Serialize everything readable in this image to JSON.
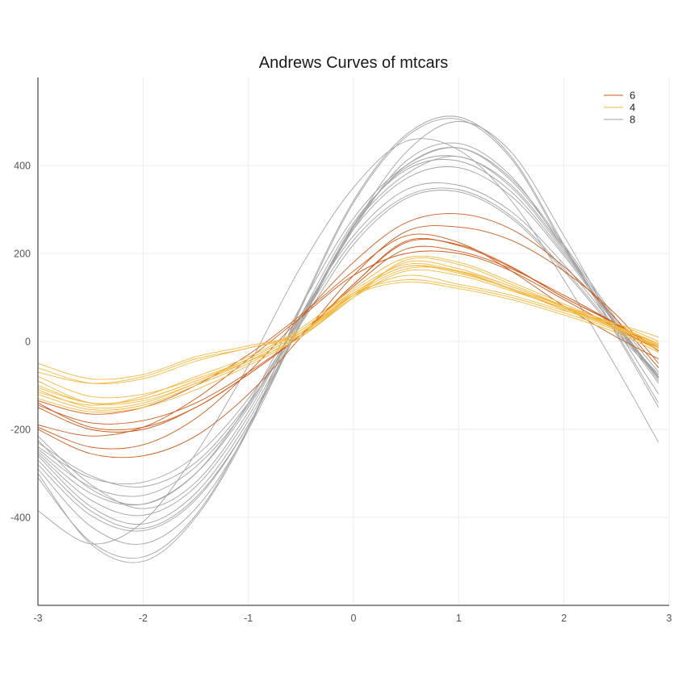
{
  "chart_data": {
    "type": "line",
    "title": "Andrews Curves of mtcars",
    "xlabel": "",
    "ylabel": "",
    "xlim": [
      -3,
      3
    ],
    "ylim": [
      -600,
      600
    ],
    "x_ticks": [
      -3,
      -2,
      -1,
      0,
      1,
      2,
      3
    ],
    "y_ticks": [
      -400,
      -200,
      0,
      200,
      400
    ],
    "grid": true,
    "legend_position": "top-right",
    "legend": [
      {
        "label": "6",
        "color": "#cc5a1a"
      },
      {
        "label": "4",
        "color": "#f2b840"
      },
      {
        "label": "8",
        "color": "#a3a3a3"
      }
    ],
    "series": [
      {
        "group": "6",
        "x": [
          -3,
          -2.5,
          -2,
          -1.5,
          -1,
          -0.5,
          0,
          0.5,
          1,
          1.5,
          2,
          2.5,
          2.9
        ],
        "y": [
          -140,
          -195,
          -195,
          -150,
          -75,
          15,
          130,
          225,
          220,
          170,
          100,
          40,
          -20
        ]
      },
      {
        "group": "6",
        "x": [
          -3,
          -2.5,
          -2,
          -1.5,
          -1,
          -0.5,
          0,
          0.5,
          1,
          1.5,
          2,
          2.5,
          2.9
        ],
        "y": [
          -150,
          -200,
          -200,
          -150,
          -75,
          15,
          130,
          228,
          218,
          168,
          100,
          38,
          -22
        ]
      },
      {
        "group": "6",
        "x": [
          -3,
          -2.5,
          -2,
          -1.5,
          -1,
          -0.5,
          0,
          0.5,
          1,
          1.5,
          2,
          2.5,
          2.9
        ],
        "y": [
          -195,
          -240,
          -235,
          -175,
          -70,
          55,
          180,
          270,
          290,
          255,
          170,
          50,
          -60
        ]
      },
      {
        "group": "6",
        "x": [
          -3,
          -2.5,
          -2,
          -1.5,
          -1,
          -0.5,
          0,
          0.5,
          1,
          1.5,
          2,
          2.5,
          2.9
        ],
        "y": [
          -200,
          -255,
          -260,
          -215,
          -120,
          10,
          150,
          250,
          260,
          230,
          160,
          60,
          -50
        ]
      },
      {
        "group": "6",
        "x": [
          -3,
          -2.5,
          -2,
          -1.5,
          -1,
          -0.5,
          0,
          0.5,
          1,
          1.5,
          2,
          2.5,
          2.9
        ],
        "y": [
          -145,
          -185,
          -180,
          -140,
          -70,
          15,
          125,
          210,
          205,
          165,
          105,
          40,
          -15
        ]
      },
      {
        "group": "6",
        "x": [
          -3,
          -2.5,
          -2,
          -1.5,
          -1,
          -0.5,
          0,
          0.5,
          1,
          1.5,
          2,
          2.5,
          2.9
        ],
        "y": [
          -135,
          -165,
          -150,
          -100,
          -30,
          60,
          160,
          240,
          225,
          160,
          80,
          10,
          -40
        ]
      },
      {
        "group": "6",
        "x": [
          -3,
          -2.5,
          -2,
          -1.5,
          -1,
          -0.5,
          0,
          0.5,
          1,
          1.5,
          2,
          2.5,
          2.9
        ],
        "y": [
          -190,
          -215,
          -195,
          -130,
          -40,
          55,
          150,
          200,
          200,
          160,
          95,
          30,
          -20
        ]
      },
      {
        "group": "4",
        "x": [
          -3,
          -2.5,
          -2,
          -1.5,
          -1,
          -0.5,
          0,
          0.5,
          1,
          1.5,
          2,
          2.5,
          2.9
        ],
        "y": [
          -50,
          -85,
          -75,
          -35,
          -10,
          20,
          110,
          170,
          155,
          120,
          80,
          40,
          0
        ]
      },
      {
        "group": "4",
        "x": [
          -3,
          -2.5,
          -2,
          -1.5,
          -1,
          -0.5,
          0,
          0.5,
          1,
          1.5,
          2,
          2.5,
          2.9
        ],
        "y": [
          -60,
          -95,
          -85,
          -45,
          -15,
          15,
          100,
          160,
          150,
          115,
          75,
          35,
          -5
        ]
      },
      {
        "group": "4",
        "x": [
          -3,
          -2.5,
          -2,
          -1.5,
          -1,
          -0.5,
          0,
          0.5,
          1,
          1.5,
          2,
          2.5,
          2.9
        ],
        "y": [
          -70,
          -95,
          -80,
          -40,
          -15,
          20,
          105,
          150,
          130,
          105,
          70,
          40,
          10
        ]
      },
      {
        "group": "4",
        "x": [
          -3,
          -2.5,
          -2,
          -1.5,
          -1,
          -0.5,
          0,
          0.5,
          1,
          1.5,
          2,
          2.5,
          2.9
        ],
        "y": [
          -100,
          -140,
          -130,
          -90,
          -40,
          25,
          115,
          175,
          160,
          120,
          75,
          30,
          -10
        ]
      },
      {
        "group": "4",
        "x": [
          -3,
          -2.5,
          -2,
          -1.5,
          -1,
          -0.5,
          0,
          0.5,
          1,
          1.5,
          2,
          2.5,
          2.9
        ],
        "y": [
          -110,
          -150,
          -140,
          -95,
          -45,
          20,
          110,
          170,
          158,
          118,
          72,
          28,
          -12
        ]
      },
      {
        "group": "4",
        "x": [
          -3,
          -2.5,
          -2,
          -1.5,
          -1,
          -0.5,
          0,
          0.5,
          1,
          1.5,
          2,
          2.5,
          2.9
        ],
        "y": [
          -120,
          -155,
          -145,
          -100,
          -50,
          15,
          105,
          180,
          165,
          125,
          80,
          35,
          -8
        ]
      },
      {
        "group": "4",
        "x": [
          -3,
          -2.5,
          -2,
          -1.5,
          -1,
          -0.5,
          0,
          0.5,
          1,
          1.5,
          2,
          2.5,
          2.9
        ],
        "y": [
          -130,
          -160,
          -150,
          -110,
          -55,
          10,
          100,
          185,
          175,
          130,
          80,
          30,
          -15
        ]
      },
      {
        "group": "4",
        "x": [
          -3,
          -2.5,
          -2,
          -1.5,
          -1,
          -0.5,
          0,
          0.5,
          1,
          1.5,
          2,
          2.5,
          2.9
        ],
        "y": [
          -105,
          -140,
          -130,
          -90,
          -45,
          10,
          105,
          165,
          160,
          125,
          78,
          32,
          -5
        ]
      },
      {
        "group": "4",
        "x": [
          -3,
          -2.5,
          -2,
          -1.5,
          -1,
          -0.5,
          0,
          0.5,
          1,
          1.5,
          2,
          2.5,
          2.9
        ],
        "y": [
          -115,
          -145,
          -125,
          -80,
          -35,
          30,
          120,
          190,
          180,
          135,
          85,
          35,
          -20
        ]
      },
      {
        "group": "4",
        "x": [
          -3,
          -2.5,
          -2,
          -1.5,
          -1,
          -0.5,
          0,
          0.5,
          1,
          1.5,
          2,
          2.5,
          2.9
        ],
        "y": [
          -80,
          -125,
          -120,
          -85,
          -40,
          25,
          110,
          140,
          125,
          100,
          65,
          25,
          -20
        ]
      },
      {
        "group": "4",
        "x": [
          -3,
          -2.5,
          -2,
          -1.5,
          -1,
          -0.5,
          0,
          0.5,
          1,
          1.5,
          2,
          2.5,
          2.9
        ],
        "y": [
          -90,
          -140,
          -135,
          -95,
          -45,
          20,
          105,
          135,
          120,
          95,
          60,
          20,
          -25
        ]
      },
      {
        "group": "8",
        "x": [
          -3,
          -2.5,
          -2,
          -1.5,
          -1,
          -0.5,
          0,
          0.5,
          1,
          1.5,
          2,
          2.5,
          2.9
        ],
        "y": [
          -300,
          -460,
          -500,
          -400,
          -200,
          80,
          320,
          470,
          510,
          420,
          220,
          20,
          -140
        ]
      },
      {
        "group": "8",
        "x": [
          -3,
          -2.5,
          -2,
          -1.5,
          -1,
          -0.5,
          0,
          0.5,
          1,
          1.5,
          2,
          2.5,
          2.9
        ],
        "y": [
          -310,
          -455,
          -490,
          -395,
          -195,
          75,
          315,
          465,
          505,
          415,
          215,
          15,
          -150
        ]
      },
      {
        "group": "8",
        "x": [
          -3,
          -2.5,
          -2,
          -1.5,
          -1,
          -0.5,
          0,
          0.5,
          1,
          1.5,
          2,
          2.5,
          2.9
        ],
        "y": [
          -385,
          -460,
          -410,
          -255,
          -55,
          170,
          350,
          455,
          435,
          320,
          140,
          -60,
          -230
        ]
      },
      {
        "group": "8",
        "x": [
          -3,
          -2.5,
          -2,
          -1.5,
          -1,
          -0.5,
          0,
          0.5,
          1,
          1.5,
          2,
          2.5,
          2.9
        ],
        "y": [
          -215,
          -325,
          -380,
          -320,
          -160,
          60,
          270,
          390,
          410,
          340,
          200,
          40,
          -80
        ]
      },
      {
        "group": "8",
        "x": [
          -3,
          -2.5,
          -2,
          -1.5,
          -1,
          -0.5,
          0,
          0.5,
          1,
          1.5,
          2,
          2.5,
          2.9
        ],
        "y": [
          -225,
          -335,
          -370,
          -300,
          -140,
          80,
          280,
          400,
          440,
          370,
          220,
          50,
          -70
        ]
      },
      {
        "group": "8",
        "x": [
          -3,
          -2.5,
          -2,
          -1.5,
          -1,
          -0.5,
          0,
          0.5,
          1,
          1.5,
          2,
          2.5,
          2.9
        ],
        "y": [
          -230,
          -305,
          -330,
          -275,
          -140,
          40,
          220,
          325,
          340,
          280,
          160,
          20,
          -80
        ]
      },
      {
        "group": "8",
        "x": [
          -3,
          -2.5,
          -2,
          -1.5,
          -1,
          -0.5,
          0,
          0.5,
          1,
          1.5,
          2,
          2.5,
          2.9
        ],
        "y": [
          -240,
          -310,
          -320,
          -260,
          -130,
          50,
          230,
          330,
          345,
          285,
          165,
          25,
          -75
        ]
      },
      {
        "group": "8",
        "x": [
          -3,
          -2.5,
          -2,
          -1.5,
          -1,
          -0.5,
          0,
          0.5,
          1,
          1.5,
          2,
          2.5,
          2.9
        ],
        "y": [
          -260,
          -375,
          -415,
          -345,
          -180,
          45,
          265,
          395,
          420,
          355,
          210,
          45,
          -85
        ]
      },
      {
        "group": "8",
        "x": [
          -3,
          -2.5,
          -2,
          -1.5,
          -1,
          -0.5,
          0,
          0.5,
          1,
          1.5,
          2,
          2.5,
          2.9
        ],
        "y": [
          -270,
          -385,
          -425,
          -355,
          -190,
          40,
          260,
          400,
          440,
          365,
          215,
          40,
          -90
        ]
      },
      {
        "group": "8",
        "x": [
          -3,
          -2.5,
          -2,
          -1.5,
          -1,
          -0.5,
          0,
          0.5,
          1,
          1.5,
          2,
          2.5,
          2.9
        ],
        "y": [
          -250,
          -345,
          -370,
          -300,
          -150,
          55,
          255,
          370,
          395,
          330,
          195,
          35,
          -85
        ]
      },
      {
        "group": "8",
        "x": [
          -3,
          -2.5,
          -2,
          -1.5,
          -1,
          -0.5,
          0,
          0.5,
          1,
          1.5,
          2,
          2.5,
          2.9
        ],
        "y": [
          -290,
          -420,
          -460,
          -380,
          -200,
          40,
          260,
          430,
          500,
          430,
          240,
          30,
          -120
        ]
      },
      {
        "group": "8",
        "x": [
          -3,
          -2.5,
          -2,
          -1.5,
          -1,
          -0.5,
          0,
          0.5,
          1,
          1.5,
          2,
          2.5,
          2.9
        ],
        "y": [
          -245,
          -330,
          -350,
          -285,
          -145,
          60,
          240,
          345,
          355,
          295,
          175,
          30,
          -75
        ]
      },
      {
        "group": "8",
        "x": [
          -3,
          -2.5,
          -2,
          -1.5,
          -1,
          -0.5,
          0,
          0.5,
          1,
          1.5,
          2,
          2.5,
          2.9
        ],
        "y": [
          -280,
          -395,
          -430,
          -360,
          -190,
          45,
          255,
          410,
          450,
          375,
          210,
          35,
          -95
        ]
      },
      {
        "group": "8",
        "x": [
          -3,
          -2.5,
          -2,
          -1.5,
          -1,
          -0.5,
          0,
          0.5,
          1,
          1.5,
          2,
          2.5,
          2.9
        ],
        "y": [
          -255,
          -360,
          -395,
          -330,
          -170,
          50,
          262,
          380,
          420,
          350,
          205,
          38,
          -82
        ]
      }
    ]
  }
}
